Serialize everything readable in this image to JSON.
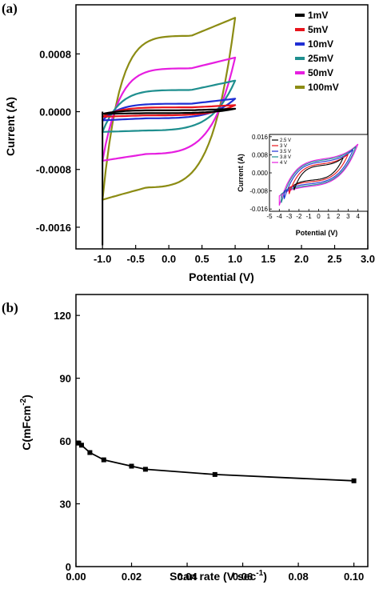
{
  "chart_data": [
    {
      "panel_label": "(a)",
      "type": "line",
      "xlabel": "Potential (V)",
      "ylabel": "Current (A)",
      "xlim": [
        -1.4,
        3.0
      ],
      "ylim": [
        -0.0019,
        0.00148
      ],
      "xticks": [
        -1.0,
        -0.5,
        0.0,
        0.5,
        1.0,
        1.5,
        2.0,
        2.5,
        3.0
      ],
      "xtick_labels": [
        "-1.0",
        "-0.5",
        "0.0",
        "0.5",
        "1.0",
        "1.5",
        "2.0",
        "2.5",
        "3.0"
      ],
      "yticks": [
        -0.0016,
        -0.0008,
        0.0,
        0.0008
      ],
      "ytick_labels": [
        "-0.0016",
        "-0.0008",
        "0.0000",
        "0.0008"
      ],
      "legend_position": "top-right",
      "series": [
        {
          "name": "1mV",
          "color": "#000000",
          "upper_start": 0.0,
          "upper_mid": 2e-05,
          "upper_end": 4e-05,
          "lower_start": -3e-05,
          "lower_mid": -2e-05
        },
        {
          "name": "5mV",
          "color": "#e8141c",
          "upper_start": 3e-05,
          "upper_mid": 6e-05,
          "upper_end": 9e-05,
          "lower_start": -7e-05,
          "lower_mid": -5e-05
        },
        {
          "name": "10mV",
          "color": "#1f2fd4",
          "upper_start": 6e-05,
          "upper_mid": 0.00011,
          "upper_end": 0.00018,
          "lower_start": -0.00012,
          "lower_mid": -9e-05
        },
        {
          "name": "25mV",
          "color": "#1f8f8f",
          "upper_start": 0.00014,
          "upper_mid": 0.0003,
          "upper_end": 0.00043,
          "lower_start": -0.00028,
          "lower_mid": -0.00026
        },
        {
          "name": "50mV",
          "color": "#e61ee0",
          "upper_start": 0.00028,
          "upper_mid": 0.0006,
          "upper_end": 0.00075,
          "lower_start": -0.00068,
          "lower_mid": -0.00058
        },
        {
          "name": "100mV",
          "color": "#8c8c14",
          "upper_start": 0.00055,
          "upper_mid": 0.00105,
          "upper_end": 0.0013,
          "lower_start": -0.00122,
          "lower_mid": -0.00104
        }
      ],
      "vertical_drop_to": -0.00185,
      "inset": {
        "type": "line",
        "xlabel": "Potential (V)",
        "ylabel": "Current (A)",
        "xlim": [
          -5,
          5
        ],
        "ylim": [
          -0.017,
          0.017
        ],
        "xticks": [
          -5,
          -4,
          -3,
          -2,
          -1,
          0,
          1,
          2,
          3,
          4
        ],
        "xtick_labels": [
          "-5",
          "-4",
          "-3",
          "-2",
          "-1",
          "0",
          "1",
          "2",
          "3",
          "4"
        ],
        "yticks": [
          -0.016,
          -0.008,
          0.0,
          0.008,
          0.016
        ],
        "ytick_labels": [
          "-0.016",
          "-0.008",
          "0.000",
          "0.008",
          "0.016"
        ],
        "series": [
          {
            "name": "2.5 V",
            "color": "#000000",
            "vmax": 2.5,
            "amp": 0.0045
          },
          {
            "name": "3 V",
            "color": "#e8141c",
            "vmax": 3.0,
            "amp": 0.0055
          },
          {
            "name": "3.5 V",
            "color": "#1f2fd4",
            "vmax": 3.5,
            "amp": 0.0068
          },
          {
            "name": "3.8 V",
            "color": "#1f8f8f",
            "vmax": 3.8,
            "amp": 0.0078
          },
          {
            "name": "4 V",
            "color": "#e61ee0",
            "vmax": 4.0,
            "amp": 0.0085
          }
        ]
      }
    },
    {
      "panel_label": "(b)",
      "type": "line",
      "xlabel": "Scan rate (V sec",
      "xlabel_sup": "-1",
      "xlabel_end": ")",
      "ylabel": "C(mFcm",
      "ylabel_sup": "-2",
      "ylabel_end": ")",
      "xlim": [
        0,
        0.105
      ],
      "ylim": [
        0,
        130
      ],
      "xticks": [
        0,
        0.02,
        0.04,
        0.06,
        0.08,
        0.1
      ],
      "xtick_labels": [
        "0.00",
        "0.02",
        "0.04",
        "0.06",
        "0.08",
        "0.10"
      ],
      "yticks": [
        0,
        30,
        60,
        90,
        120
      ],
      "ytick_labels": [
        "0",
        "30",
        "60",
        "90",
        "120"
      ],
      "series": [
        {
          "color": "#000000",
          "x": [
            0.001,
            0.002,
            0.005,
            0.01,
            0.02,
            0.025,
            0.05,
            0.1
          ],
          "y": [
            59,
            58,
            54.5,
            51,
            48,
            46.5,
            44,
            41
          ]
        }
      ]
    }
  ]
}
